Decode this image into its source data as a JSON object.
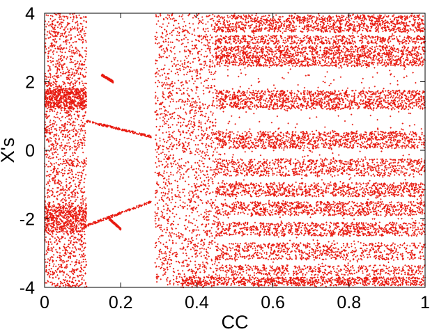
{
  "chart_data": {
    "type": "scatter",
    "xlabel": "CC",
    "ylabel": "X's",
    "xlim": [
      0,
      1
    ],
    "ylim": [
      -4,
      4
    ],
    "xticks": [
      0,
      0.2,
      0.4,
      0.6,
      0.8,
      1
    ],
    "xtick_labels": [
      "0",
      "0.2",
      "0.4",
      "0.6",
      "0.8",
      "1"
    ],
    "yticks": [
      -4,
      -2,
      0,
      2,
      4
    ],
    "ytick_labels": [
      "-4",
      "-2",
      "0",
      "2",
      "4"
    ],
    "marker_color": "#e8190f",
    "grid": false,
    "legend": "none",
    "regions": [
      {
        "x": [
          0.0,
          0.11
        ],
        "y": [
          -4.0,
          4.0
        ],
        "density": 1900
      },
      {
        "x": [
          0.0,
          0.11
        ],
        "y": [
          1.2,
          1.8
        ],
        "density": 500
      },
      {
        "x": [
          0.0,
          0.11
        ],
        "y": [
          -2.4,
          -1.6
        ],
        "density": 400
      },
      {
        "x": [
          0.29,
          0.45
        ],
        "y": [
          -4.0,
          4.0
        ],
        "density": 1700
      },
      {
        "x": [
          0.45,
          1.0
        ],
        "y": [
          3.45,
          3.95
        ],
        "density": 1100
      },
      {
        "x": [
          0.45,
          1.0
        ],
        "y": [
          3.1,
          3.35
        ],
        "density": 500
      },
      {
        "x": [
          0.45,
          1.0
        ],
        "y": [
          2.45,
          3.05
        ],
        "density": 1400
      },
      {
        "x": [
          0.45,
          1.0
        ],
        "y": [
          1.2,
          1.75
        ],
        "density": 1200
      },
      {
        "x": [
          0.45,
          1.0
        ],
        "y": [
          0.05,
          0.55
        ],
        "density": 1000
      },
      {
        "x": [
          0.45,
          1.0
        ],
        "y": [
          -0.75,
          -0.25
        ],
        "density": 800
      },
      {
        "x": [
          0.45,
          1.0
        ],
        "y": [
          -1.35,
          -0.95
        ],
        "density": 800
      },
      {
        "x": [
          0.45,
          1.0
        ],
        "y": [
          -1.9,
          -1.5
        ],
        "density": 800
      },
      {
        "x": [
          0.45,
          1.0
        ],
        "y": [
          -2.5,
          -2.1
        ],
        "density": 800
      },
      {
        "x": [
          0.45,
          1.0
        ],
        "y": [
          -3.2,
          -2.7
        ],
        "density": 700
      },
      {
        "x": [
          0.45,
          1.0
        ],
        "y": [
          -3.65,
          -3.35
        ],
        "density": 450
      },
      {
        "x": [
          0.36,
          1.0
        ],
        "y": [
          -3.95,
          -3.7
        ],
        "density": 900
      },
      {
        "x": [
          0.45,
          1.0
        ],
        "y": [
          -4.0,
          4.0
        ],
        "density": 700
      }
    ],
    "branches": [
      {
        "x": [
          0.11,
          0.28
        ],
        "y": [
          0.85,
          0.4
        ]
      },
      {
        "x": [
          0.11,
          0.28
        ],
        "y": [
          -2.2,
          -1.5
        ]
      },
      {
        "x": [
          0.15,
          0.18
        ],
        "y": [
          2.2,
          2.0
        ]
      },
      {
        "x": [
          0.17,
          0.2
        ],
        "y": [
          -2.0,
          -2.3
        ]
      }
    ]
  }
}
